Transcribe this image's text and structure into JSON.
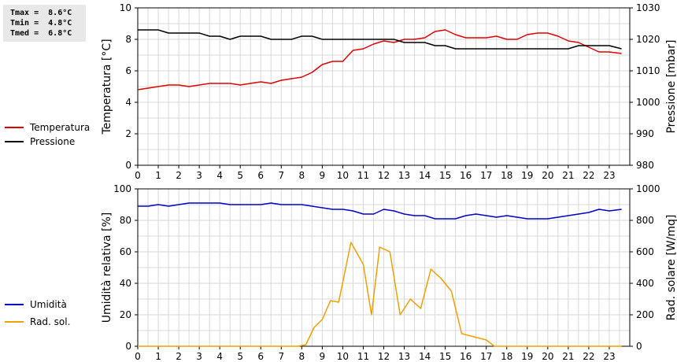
{
  "stats": {
    "tmax": "Tmax =  8.6°C",
    "tmin": "Tmin =  4.8°C",
    "tmed": "Tmed =  6.8°C"
  },
  "chart_data": [
    {
      "type": "line",
      "x_ticks": [
        "0",
        "1",
        "2",
        "3",
        "4",
        "5",
        "6",
        "7",
        "8",
        "9",
        "10",
        "11",
        "12",
        "13",
        "14",
        "15",
        "16",
        "17",
        "18",
        "19",
        "20",
        "21",
        "22",
        "23"
      ],
      "xlim": [
        0,
        24
      ],
      "ylabel_left": "Temperatura [°C]",
      "ylabel_right": "Pressione [mbar]",
      "ylim_left": [
        0,
        10
      ],
      "ylim_right": [
        980,
        1030
      ],
      "yticks_left": [
        "0",
        "2",
        "4",
        "6",
        "8",
        "10"
      ],
      "yticks_right": [
        "980",
        "990",
        "1000",
        "1010",
        "1020",
        "1030"
      ],
      "grid": true,
      "legend_position": "left",
      "series": [
        {
          "name": "Temperatura",
          "axis": "left",
          "color": "#e00000",
          "x": [
            0,
            0.5,
            1,
            1.5,
            2,
            2.5,
            3,
            3.5,
            4,
            4.5,
            5,
            5.5,
            6,
            6.5,
            7,
            7.5,
            8,
            8.5,
            9,
            9.5,
            10,
            10.5,
            11,
            11.5,
            12,
            12.5,
            13,
            13.5,
            14,
            14.5,
            15,
            15.5,
            16,
            16.5,
            17,
            17.5,
            18,
            18.5,
            19,
            19.5,
            20,
            20.5,
            21,
            21.5,
            22,
            22.5,
            23,
            23.6
          ],
          "values": [
            4.8,
            4.9,
            5.0,
            5.1,
            5.1,
            5.0,
            5.1,
            5.2,
            5.2,
            5.2,
            5.1,
            5.2,
            5.3,
            5.2,
            5.4,
            5.5,
            5.6,
            5.9,
            6.4,
            6.6,
            6.6,
            7.3,
            7.4,
            7.7,
            7.9,
            7.8,
            8.0,
            8.0,
            8.1,
            8.5,
            8.6,
            8.3,
            8.1,
            8.1,
            8.1,
            8.2,
            8.0,
            8.0,
            8.3,
            8.4,
            8.4,
            8.2,
            7.9,
            7.8,
            7.5,
            7.2,
            7.2,
            7.1
          ]
        },
        {
          "name": "Pressione",
          "axis": "right",
          "color": "#000000",
          "x": [
            0,
            1,
            1.5,
            2,
            3,
            3.5,
            4,
            4.5,
            5,
            6,
            6.5,
            7,
            7.5,
            8,
            8.5,
            9,
            11.5,
            12,
            12.5,
            13,
            14,
            14.5,
            15,
            15.5,
            16,
            21,
            21.5,
            22,
            23,
            23.6
          ],
          "values": [
            1023,
            1023,
            1022,
            1022,
            1022,
            1021,
            1021,
            1020,
            1021,
            1021,
            1020,
            1020,
            1020,
            1021,
            1021,
            1020,
            1020,
            1020,
            1020,
            1019,
            1019,
            1018,
            1018,
            1017,
            1017,
            1017,
            1018,
            1018,
            1018,
            1017
          ]
        }
      ]
    },
    {
      "type": "line",
      "x_ticks": [
        "0",
        "1",
        "2",
        "3",
        "4",
        "5",
        "6",
        "7",
        "8",
        "9",
        "10",
        "11",
        "12",
        "13",
        "14",
        "15",
        "16",
        "17",
        "18",
        "19",
        "20",
        "21",
        "22",
        "23"
      ],
      "xlim": [
        0,
        24
      ],
      "ylabel_left": "Umidità relativa [%]",
      "ylabel_right": "Rad. solare [W/mq]",
      "ylim_left": [
        0,
        100
      ],
      "ylim_right": [
        0,
        1000
      ],
      "yticks_left": [
        "0",
        "20",
        "40",
        "60",
        "80",
        "100"
      ],
      "yticks_right": [
        "0",
        "200",
        "400",
        "600",
        "800",
        "1000"
      ],
      "grid": true,
      "legend_position": "left",
      "series": [
        {
          "name": "Umidità",
          "axis": "left",
          "color": "#0000c8",
          "x": [
            0,
            0.5,
            1,
            1.5,
            2,
            2.5,
            3,
            3.5,
            4,
            4.5,
            5,
            5.5,
            6,
            6.5,
            7,
            7.5,
            8,
            8.5,
            9,
            9.5,
            10,
            10.5,
            11,
            11.5,
            12,
            12.5,
            13,
            13.5,
            14,
            14.5,
            15,
            15.5,
            16,
            16.5,
            17,
            17.5,
            18,
            18.5,
            19,
            19.5,
            20,
            20.5,
            21,
            21.5,
            22,
            22.5,
            23,
            23.6
          ],
          "values": [
            89,
            89,
            90,
            89,
            90,
            91,
            91,
            91,
            91,
            90,
            90,
            90,
            90,
            91,
            90,
            90,
            90,
            89,
            88,
            87,
            87,
            86,
            84,
            84,
            87,
            86,
            84,
            83,
            83,
            81,
            81,
            81,
            83,
            84,
            83,
            82,
            83,
            82,
            81,
            81,
            81,
            82,
            83,
            84,
            85,
            87,
            86,
            87
          ]
        },
        {
          "name": "Rad. sol.",
          "axis": "right",
          "color": "#f0a000",
          "x": [
            0,
            7.5,
            7.8,
            8.2,
            8.6,
            9,
            9.4,
            9.8,
            10.4,
            11,
            11.4,
            11.8,
            12.3,
            12.8,
            13.3,
            13.8,
            14.3,
            14.8,
            15.3,
            15.8,
            16.4,
            17,
            17.4,
            18,
            23.6
          ],
          "values": [
            0,
            0,
            0,
            10,
            120,
            170,
            290,
            280,
            660,
            520,
            200,
            630,
            600,
            200,
            300,
            240,
            490,
            430,
            350,
            80,
            60,
            40,
            0,
            0,
            0
          ]
        }
      ]
    }
  ]
}
